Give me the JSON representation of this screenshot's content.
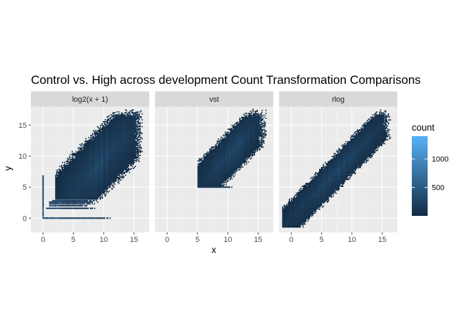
{
  "chart_data": {
    "type": "heatmap",
    "subtype": "hexbin-facets",
    "title": "Control vs. High across development Count Transformation Comparisons",
    "xlabel": "x",
    "ylabel": "y",
    "xlim": [
      -2,
      17.5
    ],
    "ylim": [
      -2.3,
      18
    ],
    "x_ticks": [
      0,
      5,
      10,
      15
    ],
    "y_ticks": [
      0,
      5,
      10,
      15
    ],
    "grid": true,
    "legend": {
      "title": "count",
      "placement": "right",
      "range": [
        1,
        1400
      ],
      "ticks": [
        500,
        1000
      ],
      "colors": {
        "low": "#132B43",
        "high": "#56B1F7"
      }
    },
    "panels": [
      {
        "label": "log2(x + 1)",
        "cloud": {
          "x0": 2.0,
          "x1": 16.5,
          "y0": 3.0,
          "y1": 17.5,
          "lo_offset": -7.0,
          "hi_offset": 6.0
        },
        "floor_rows": [
          {
            "y": 0.0,
            "x_from": 0.0,
            "x_to": 11.0
          },
          {
            "y": 1.58,
            "x_from": 0.5,
            "x_to": 8.5
          },
          {
            "y": 2.0,
            "x_from": 1.0,
            "x_to": 8.0
          },
          {
            "y": 2.32,
            "x_from": 1.0,
            "x_to": 8.5
          },
          {
            "y": 2.58,
            "x_from": 1.0,
            "x_to": 9.0
          },
          {
            "y": 2.81,
            "x_from": 1.5,
            "x_to": 9.0
          }
        ],
        "left_column": {
          "x": 0.0,
          "y_from": 0.0,
          "y_to": 7.0
        }
      },
      {
        "label": "vst",
        "cloud": {
          "x0": 5.0,
          "x1": 16.5,
          "y0": 5.0,
          "y1": 17.5,
          "lo_offset": -4.5,
          "hi_offset": 4.5
        },
        "floor_rows": [
          {
            "y": 5.0,
            "x_from": 5.0,
            "x_to": 11.0
          }
        ],
        "left_column": null
      },
      {
        "label": "rlog",
        "cloud": {
          "x0": -1.5,
          "x1": 16.5,
          "y0": -1.5,
          "y1": 17.5,
          "lo_offset": -3.5,
          "hi_offset": 3.5
        },
        "floor_rows": [],
        "left_column": null
      }
    ]
  }
}
